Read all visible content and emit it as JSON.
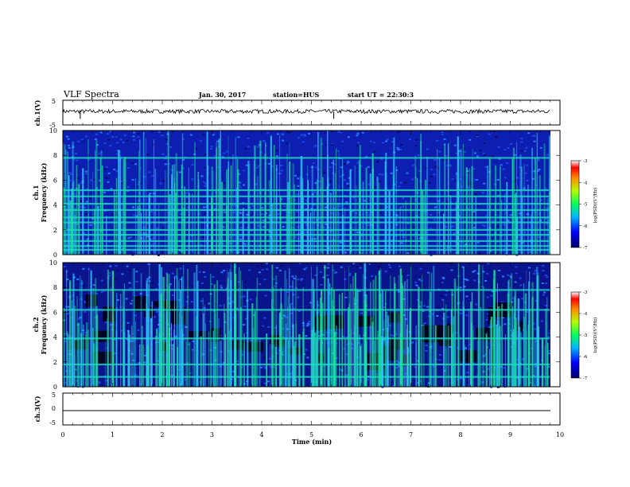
{
  "header": {
    "title": "VLF Spectra",
    "date": "Jan. 30, 2017",
    "station": "station=HUS",
    "start": "start UT = 22:30:3"
  },
  "chart_data": [
    {
      "type": "line",
      "panel": "ch1-waveform",
      "ylabel": "ch.1(V)",
      "ylim": [
        -5,
        5
      ],
      "yticks": [
        "5",
        "-5"
      ],
      "xlim": [
        0,
        10
      ],
      "description_level": 0.5,
      "spikes_at_min": [
        0.35,
        5.45
      ],
      "color": "#000000"
    },
    {
      "type": "heatmap",
      "panel": "ch1-spectrogram",
      "ylabel": "ch.1\nFrequency (kHz)",
      "ylabel_top": "ch.1",
      "ylabel_bottom": "Frequency (kHz)",
      "ylim": [
        0,
        10
      ],
      "yticks": [
        "0",
        "2",
        "4",
        "6",
        "8",
        "10"
      ],
      "xlim": [
        0,
        10
      ],
      "zlim": [
        -7,
        -3
      ],
      "z_ticks": [
        "-3",
        "-4",
        "-5",
        "-6",
        "-7"
      ],
      "colorbar_label": "log(PSD)(V²/Hz)",
      "bands_khz": [
        0.4,
        0.7,
        1.1,
        1.6,
        2.0,
        2.6,
        3.0,
        3.6,
        4.1,
        4.7,
        5.2,
        7.8
      ],
      "background_level": -6.3
    },
    {
      "type": "heatmap",
      "panel": "ch2-spectrogram",
      "ylabel_top": "ch.2",
      "ylabel_bottom": "Frequency (kHz)",
      "ylim": [
        0,
        10
      ],
      "yticks": [
        "0",
        "2",
        "4",
        "6",
        "8",
        "10"
      ],
      "xlim": [
        0,
        10
      ],
      "zlim": [
        -7,
        -3
      ],
      "z_ticks": [
        "-3",
        "-4",
        "-5",
        "-6",
        "-7"
      ],
      "colorbar_label": "log(PSD)(V²/Hz)",
      "bands_khz": [
        0.8,
        1.8,
        3.9,
        6.2,
        7.8
      ],
      "background_level": -6.6
    },
    {
      "type": "line",
      "panel": "ch3-waveform",
      "ylabel": "ch.3(V)",
      "ylim": [
        -5,
        5
      ],
      "yticks": [
        "5",
        "0",
        "-5"
      ],
      "xlim": [
        0,
        10
      ],
      "xticks": [
        "0",
        "1",
        "2",
        "3",
        "4",
        "5",
        "6",
        "7",
        "8",
        "9",
        "10"
      ],
      "xlabel": "Time (min)",
      "level": 0,
      "color": "#000000"
    }
  ]
}
